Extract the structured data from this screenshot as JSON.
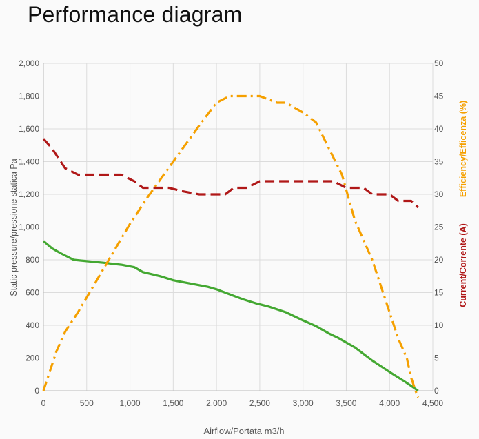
{
  "title": "Performance diagram",
  "chart_data": {
    "type": "line",
    "xlabel": "Airflow/Portata m3/h",
    "ylabel_left": "Static pressure/pressione statica Pa",
    "ylabel_right_efficiency": "Efficiency/Efficenza (%)",
    "ylabel_right_current": "Current/Corrente (A)",
    "xlim": [
      0,
      4500
    ],
    "ylim_left": [
      0,
      2000
    ],
    "ylim_right": [
      0,
      50
    ],
    "x_ticks": [
      "0",
      "500",
      "1,000",
      "1,500",
      "2,000",
      "2,500",
      "3,000",
      "3,500",
      "4,000",
      "4,500"
    ],
    "y_left_ticks": [
      "0",
      "200",
      "400",
      "600",
      "800",
      "1,000",
      "1,200",
      "1,400",
      "1,600",
      "1,800",
      "2,000"
    ],
    "y_right_ticks": [
      "0",
      "5",
      "10",
      "15",
      "20",
      "25",
      "30",
      "35",
      "40",
      "45",
      "50"
    ],
    "grid": true,
    "series": [
      {
        "key": "pressure",
        "axis": "left",
        "color": "#44a832",
        "style": "solid",
        "x": [
          0,
          100,
          200,
          350,
          500,
          700,
          900,
          1050,
          1150,
          1350,
          1500,
          1700,
          1900,
          2000,
          2150,
          2300,
          2450,
          2600,
          2800,
          3000,
          3150,
          3300,
          3400,
          3600,
          3800,
          4000,
          4150,
          4250,
          4330
        ],
        "y": [
          915,
          870,
          840,
          800,
          792,
          782,
          770,
          755,
          725,
          700,
          675,
          655,
          635,
          620,
          590,
          560,
          535,
          515,
          480,
          430,
          395,
          350,
          325,
          265,
          185,
          115,
          65,
          30,
          0
        ]
      },
      {
        "key": "efficiency",
        "axis": "right",
        "color": "#f5a000",
        "style": "dashdot",
        "x": [
          0,
          50,
          150,
          250,
          400,
          600,
          800,
          1000,
          1200,
          1500,
          1800,
          2000,
          2150,
          2300,
          2500,
          2700,
          2800,
          3000,
          3150,
          3300,
          3450,
          3600,
          3700,
          3800,
          4000,
          4100,
          4200,
          4250,
          4300,
          4330
        ],
        "y": [
          0,
          2,
          6,
          9,
          12,
          16.5,
          21,
          25.5,
          29.5,
          35,
          40.5,
          44,
          45,
          45,
          45,
          44,
          44,
          42.5,
          41,
          37,
          33,
          26,
          23,
          20,
          12,
          8,
          5,
          2,
          0,
          -1
        ]
      },
      {
        "key": "current",
        "axis": "right",
        "color": "#b01818",
        "style": "dashed",
        "x": [
          0,
          100,
          150,
          250,
          400,
          600,
          900,
          1050,
          1150,
          1250,
          1450,
          1600,
          1800,
          2000,
          2100,
          2200,
          2350,
          2500,
          2700,
          2900,
          3100,
          3350,
          3500,
          3700,
          3800,
          4000,
          4100,
          4250,
          4330
        ],
        "y": [
          38.5,
          37,
          36,
          34,
          33,
          33,
          33,
          32,
          31,
          31,
          31,
          30.5,
          30,
          30,
          30,
          31,
          31,
          32,
          32,
          32,
          32,
          32,
          31,
          31,
          30,
          30,
          29,
          29,
          28
        ]
      }
    ]
  }
}
